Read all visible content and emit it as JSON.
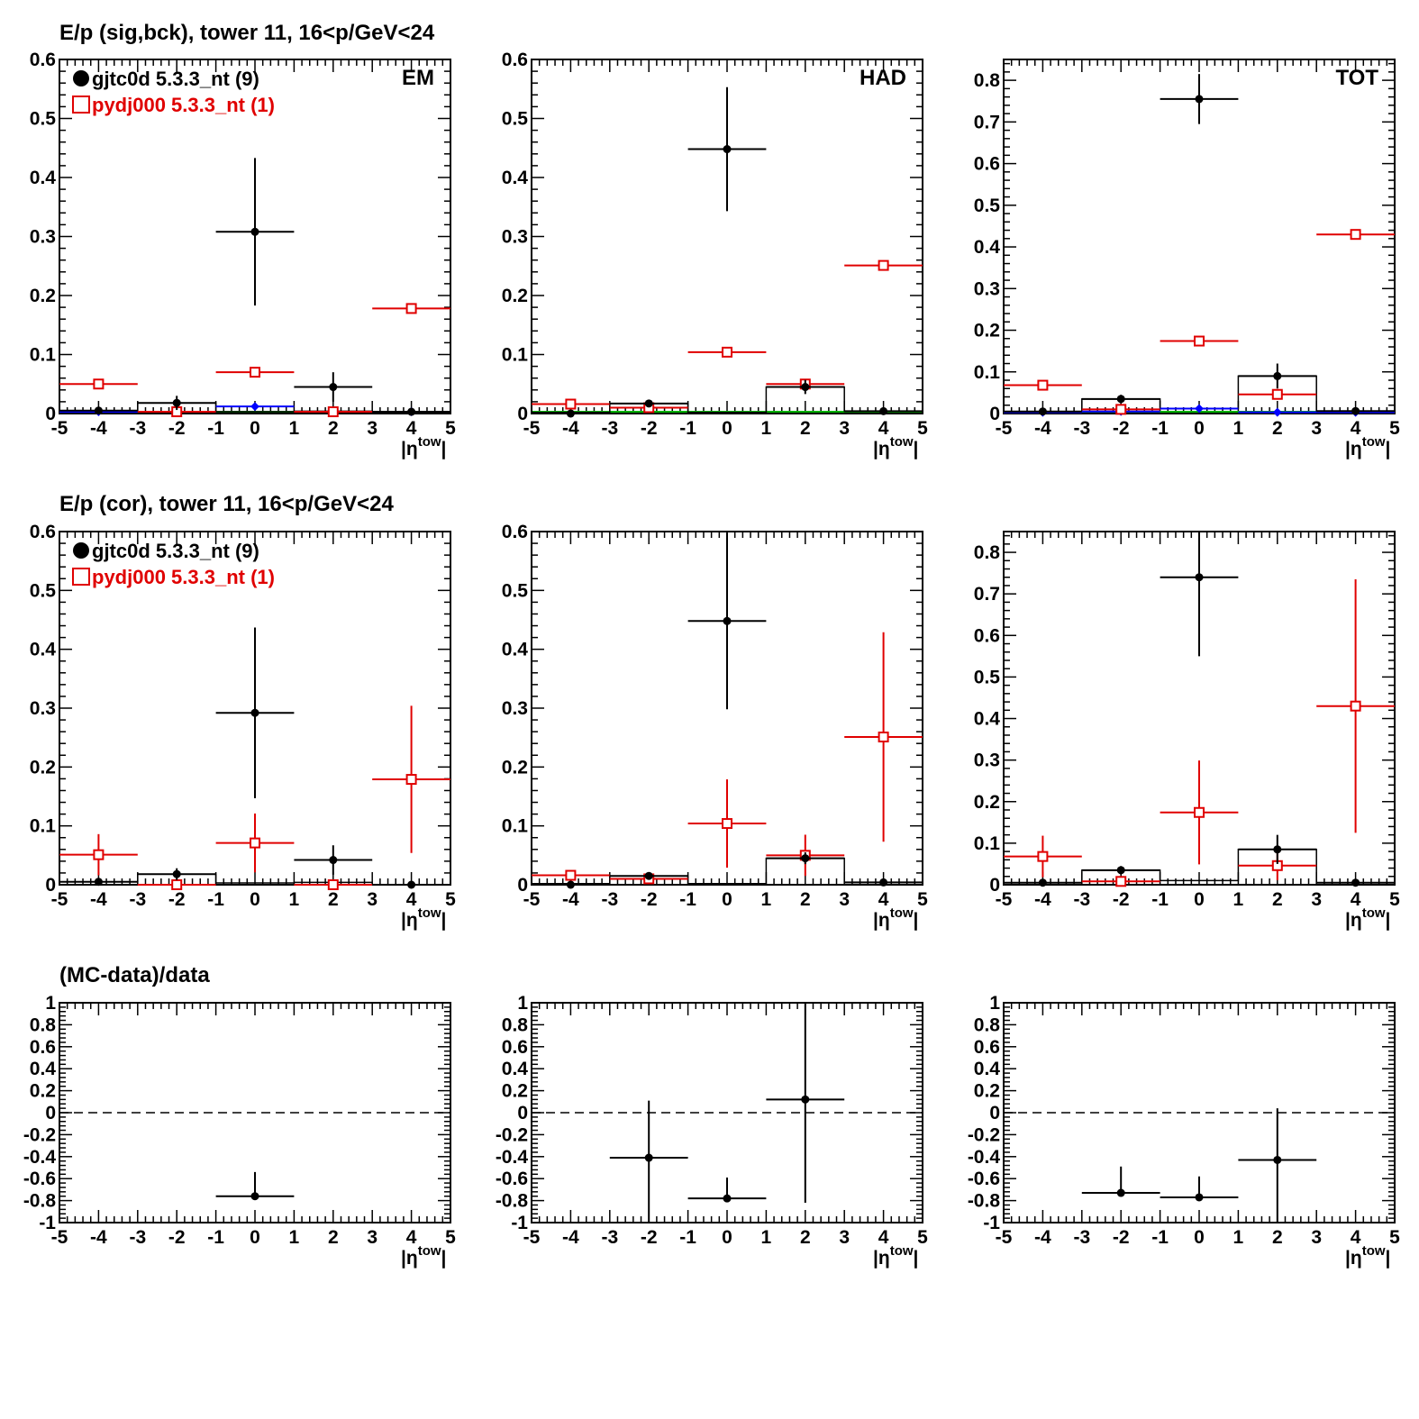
{
  "row_titles": [
    "E/p (sig,bck), tower 11, 16<p/GeV<24",
    "E/p (cor), tower 11, 16<p/GeV<24",
    "(MC-data)/data"
  ],
  "panel_labels": [
    "EM",
    "HAD",
    "TOT"
  ],
  "legend": [
    {
      "label": "gjtc0d 5.3.3_nt (9)",
      "color": "#000000",
      "marker": "filled-circle"
    },
    {
      "label": "pydj000 5.3.3_nt (1)",
      "color": "#e00000",
      "marker": "open-square"
    }
  ],
  "axis": {
    "x_label_main": "|η",
    "x_label_sup": "tow",
    "x_label_end": "|",
    "x_ticks": [
      -5,
      -4,
      -3,
      -2,
      -1,
      0,
      1,
      2,
      3,
      4,
      5
    ]
  },
  "colors": {
    "data": "#000000",
    "mc": "#e00000",
    "blue": "#0000ff",
    "green": "#00b000"
  },
  "chart_data": [
    {
      "type": "scatter",
      "row": 0,
      "col": 0,
      "label": "EM",
      "xlim": [
        -5,
        5
      ],
      "ylim": [
        0,
        0.6
      ],
      "yticks": [
        0,
        0.1,
        0.2,
        0.3,
        0.4,
        0.5,
        0.6
      ],
      "ydec": 1,
      "x_bins": [
        -4,
        -2,
        0,
        2,
        4
      ],
      "bin_half_width": 1,
      "series": [
        {
          "name": "gjtc0d 5.3.3_nt (9)",
          "values": [
            0.005,
            0.018,
            0.308,
            0.045,
            0.003
          ],
          "errors": [
            0.004,
            0.012,
            0.125,
            0.025,
            0.002
          ]
        },
        {
          "name": "pydj000 5.3.3_nt (1)",
          "values": [
            0.05,
            0.003,
            0.07,
            0.003,
            0.178
          ],
          "errors": [
            0.0,
            0.0,
            0.0,
            0.0,
            0.0
          ]
        }
      ],
      "outline_bins": [
        0.005,
        0.018,
        0.003,
        0.004,
        0.003
      ],
      "blue_series": [
        0.003,
        0.003,
        0.012,
        0.003,
        0.003
      ],
      "green_line": 0.0
    },
    {
      "type": "scatter",
      "row": 0,
      "col": 1,
      "label": "HAD",
      "xlim": [
        -5,
        5
      ],
      "ylim": [
        0,
        0.6
      ],
      "yticks": [
        0,
        0.1,
        0.2,
        0.3,
        0.4,
        0.5,
        0.6
      ],
      "ydec": 1,
      "x_bins": [
        -4,
        -2,
        0,
        2,
        4
      ],
      "bin_half_width": 1,
      "series": [
        {
          "name": "gjtc0d 5.3.3_nt (9)",
          "values": [
            0.0,
            0.017,
            0.448,
            0.045,
            0.004
          ],
          "errors": [
            0.0,
            0.005,
            0.105,
            0.012,
            0.003
          ]
        },
        {
          "name": "pydj000 5.3.3_nt (1)",
          "values": [
            0.016,
            0.01,
            0.104,
            0.05,
            0.251
          ],
          "errors": [
            0.0,
            0.0,
            0.0,
            0.0,
            0.0
          ]
        }
      ],
      "outline_bins": [
        0.002,
        0.017,
        0.002,
        0.045,
        0.004
      ],
      "blue_series": [],
      "green_line": 0.0
    },
    {
      "type": "scatter",
      "row": 0,
      "col": 2,
      "label": "TOT",
      "xlim": [
        -5,
        5
      ],
      "ylim": [
        0,
        0.85
      ],
      "yticks": [
        0,
        0.1,
        0.2,
        0.3,
        0.4,
        0.5,
        0.6,
        0.7,
        0.8
      ],
      "ydec": 1,
      "x_bins": [
        -4,
        -2,
        0,
        2,
        4
      ],
      "bin_half_width": 1,
      "series": [
        {
          "name": "gjtc0d 5.3.3_nt (9)",
          "values": [
            0.005,
            0.035,
            0.755,
            0.09,
            0.006
          ],
          "errors": [
            0.005,
            0.01,
            0.06,
            0.03,
            0.005
          ]
        },
        {
          "name": "pydj000 5.3.3_nt (1)",
          "values": [
            0.068,
            0.01,
            0.174,
            0.046,
            0.43
          ],
          "errors": [
            0.0,
            0.0,
            0.0,
            0.0,
            0.0
          ]
        }
      ],
      "outline_bins": [
        0.005,
        0.035,
        0.012,
        0.09,
        0.006
      ],
      "blue_series": [
        0.003,
        0.005,
        0.012,
        0.003,
        0.003
      ],
      "green_line": 0.0
    },
    {
      "type": "scatter",
      "row": 1,
      "col": 0,
      "xlim": [
        -5,
        5
      ],
      "ylim": [
        0,
        0.6
      ],
      "yticks": [
        0,
        0.1,
        0.2,
        0.3,
        0.4,
        0.5,
        0.6
      ],
      "ydec": 1,
      "x_bins": [
        -4,
        -2,
        0,
        2,
        4
      ],
      "bin_half_width": 1,
      "series": [
        {
          "name": "gjtc0d 5.3.3_nt (9)",
          "values": [
            0.005,
            0.018,
            0.292,
            0.042,
            0.0
          ],
          "errors": [
            0.004,
            0.01,
            0.145,
            0.025,
            0.0
          ]
        },
        {
          "name": "pydj000 5.3.3_nt (1)",
          "values": [
            0.051,
            0.0,
            0.071,
            0.0,
            0.179
          ],
          "errors": [
            0.035,
            0.0,
            0.05,
            0.0,
            0.125
          ]
        }
      ],
      "outline_bins": [
        0.005,
        0.018,
        0.003,
        0.004,
        0.0
      ]
    },
    {
      "type": "scatter",
      "row": 1,
      "col": 1,
      "xlim": [
        -5,
        5
      ],
      "ylim": [
        0,
        0.6
      ],
      "yticks": [
        0,
        0.1,
        0.2,
        0.3,
        0.4,
        0.5,
        0.6
      ],
      "ydec": 1,
      "x_bins": [
        -4,
        -2,
        0,
        2,
        4
      ],
      "bin_half_width": 1,
      "series": [
        {
          "name": "gjtc0d 5.3.3_nt (9)",
          "values": [
            0.0,
            0.015,
            0.448,
            0.045,
            0.004
          ],
          "errors": [
            0.0,
            0.005,
            0.15,
            0.01,
            0.003
          ]
        },
        {
          "name": "pydj000 5.3.3_nt (1)",
          "values": [
            0.016,
            0.01,
            0.104,
            0.05,
            0.251
          ],
          "errors": [
            0.005,
            0.005,
            0.075,
            0.035,
            0.178
          ]
        }
      ],
      "outline_bins": [
        0.002,
        0.015,
        0.002,
        0.045,
        0.004
      ]
    },
    {
      "type": "scatter",
      "row": 1,
      "col": 2,
      "xlim": [
        -5,
        5
      ],
      "ylim": [
        0,
        0.85
      ],
      "yticks": [
        0,
        0.1,
        0.2,
        0.3,
        0.4,
        0.5,
        0.6,
        0.7,
        0.8
      ],
      "ydec": 1,
      "x_bins": [
        -4,
        -2,
        0,
        2,
        4
      ],
      "bin_half_width": 1,
      "series": [
        {
          "name": "gjtc0d 5.3.3_nt (9)",
          "values": [
            0.005,
            0.035,
            0.74,
            0.085,
            0.005
          ],
          "errors": [
            0.005,
            0.01,
            0.19,
            0.035,
            0.005
          ]
        },
        {
          "name": "pydj000 5.3.3_nt (1)",
          "values": [
            0.068,
            0.008,
            0.174,
            0.046,
            0.43
          ],
          "errors": [
            0.05,
            0.005,
            0.125,
            0.035,
            0.305
          ]
        }
      ],
      "outline_bins": [
        0.005,
        0.035,
        0.01,
        0.085,
        0.005
      ]
    },
    {
      "type": "scatter",
      "row": 2,
      "col": 0,
      "xlim": [
        -5,
        5
      ],
      "ylim": [
        -1,
        1
      ],
      "yticks": [
        -1,
        -0.8,
        -0.6,
        -0.4,
        -0.2,
        0,
        0.2,
        0.4,
        0.6,
        0.8,
        1
      ],
      "ydec": 1,
      "points": [
        {
          "x": 0,
          "y": -0.76,
          "xerr": 1,
          "yerr_lo": 0.0,
          "yerr_hi": 0.22
        }
      ]
    },
    {
      "type": "scatter",
      "row": 2,
      "col": 1,
      "xlim": [
        -5,
        5
      ],
      "ylim": [
        -1,
        1
      ],
      "yticks": [
        -1,
        -0.8,
        -0.6,
        -0.4,
        -0.2,
        0,
        0.2,
        0.4,
        0.6,
        0.8,
        1
      ],
      "ydec": 1,
      "points": [
        {
          "x": -2,
          "y": -0.41,
          "xerr": 1,
          "yerr_lo": 0.59,
          "yerr_hi": 0.52
        },
        {
          "x": 0,
          "y": -0.78,
          "xerr": 1,
          "yerr_lo": 0.0,
          "yerr_hi": 0.19
        },
        {
          "x": 2,
          "y": 0.12,
          "xerr": 1,
          "yerr_lo": 0.94,
          "yerr_hi": 0.88
        }
      ]
    },
    {
      "type": "scatter",
      "row": 2,
      "col": 2,
      "xlim": [
        -5,
        5
      ],
      "ylim": [
        -1,
        1
      ],
      "yticks": [
        -1,
        -0.8,
        -0.6,
        -0.4,
        -0.2,
        0,
        0.2,
        0.4,
        0.6,
        0.8,
        1
      ],
      "ydec": 1,
      "points": [
        {
          "x": -2,
          "y": -0.73,
          "xerr": 1,
          "yerr_lo": 0.0,
          "yerr_hi": 0.24
        },
        {
          "x": 0,
          "y": -0.77,
          "xerr": 1,
          "yerr_lo": 0.0,
          "yerr_hi": 0.19
        },
        {
          "x": 2,
          "y": -0.43,
          "xerr": 1,
          "yerr_lo": 0.57,
          "yerr_hi": 0.47
        }
      ]
    }
  ]
}
